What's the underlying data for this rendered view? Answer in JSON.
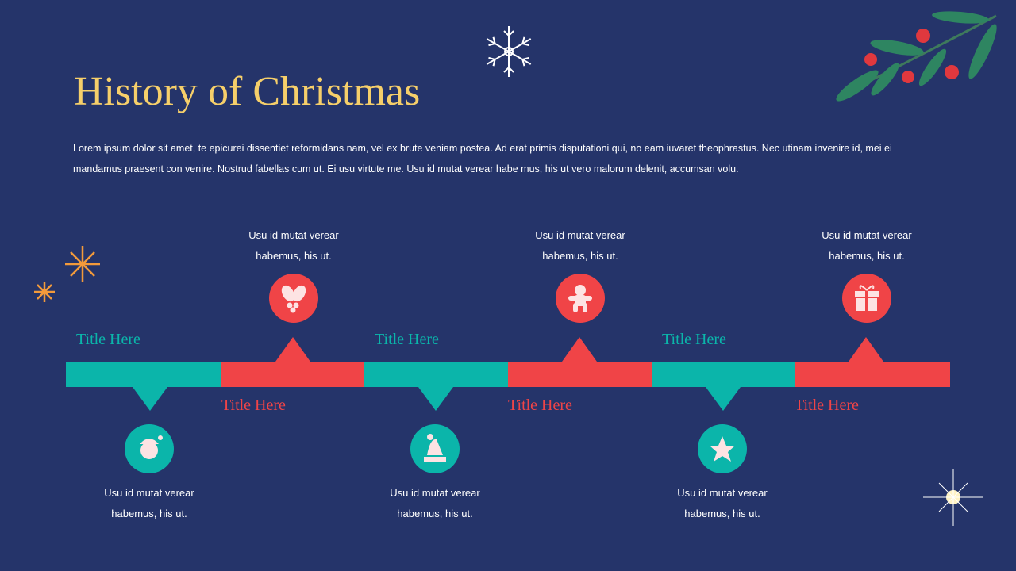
{
  "title": "History of Christmas",
  "body": "Lorem ipsum dolor sit amet, te epicurei dissentiet reformidans nam, vel ex brute veniam postea. Ad erat primis disputationi qui, no eam iuvaret theophrastus. Nec utinam invenire id, mei ei mandamus praesent con venire. Nostrud fabellas cum ut. Ei usu virtute me.  Usu id mutat verear habe mus, his ut vero malorum delenit, accumsan volu.",
  "timeline": [
    {
      "title": "Title Here",
      "text": "Usu id mutat verear habemus, his ut."
    },
    {
      "title": "Title Here",
      "text": "Usu id mutat verear habemus, his ut."
    },
    {
      "title": "Title Here",
      "text": "Usu id mutat verear habemus, his ut."
    },
    {
      "title": "Title Here",
      "text": "Usu id mutat verear habemus, his ut."
    },
    {
      "title": "Title Here",
      "text": "Usu id mutat verear habemus, his ut."
    },
    {
      "title": "Title Here",
      "text": "Usu id mutat verear habemus, his ut."
    }
  ]
}
